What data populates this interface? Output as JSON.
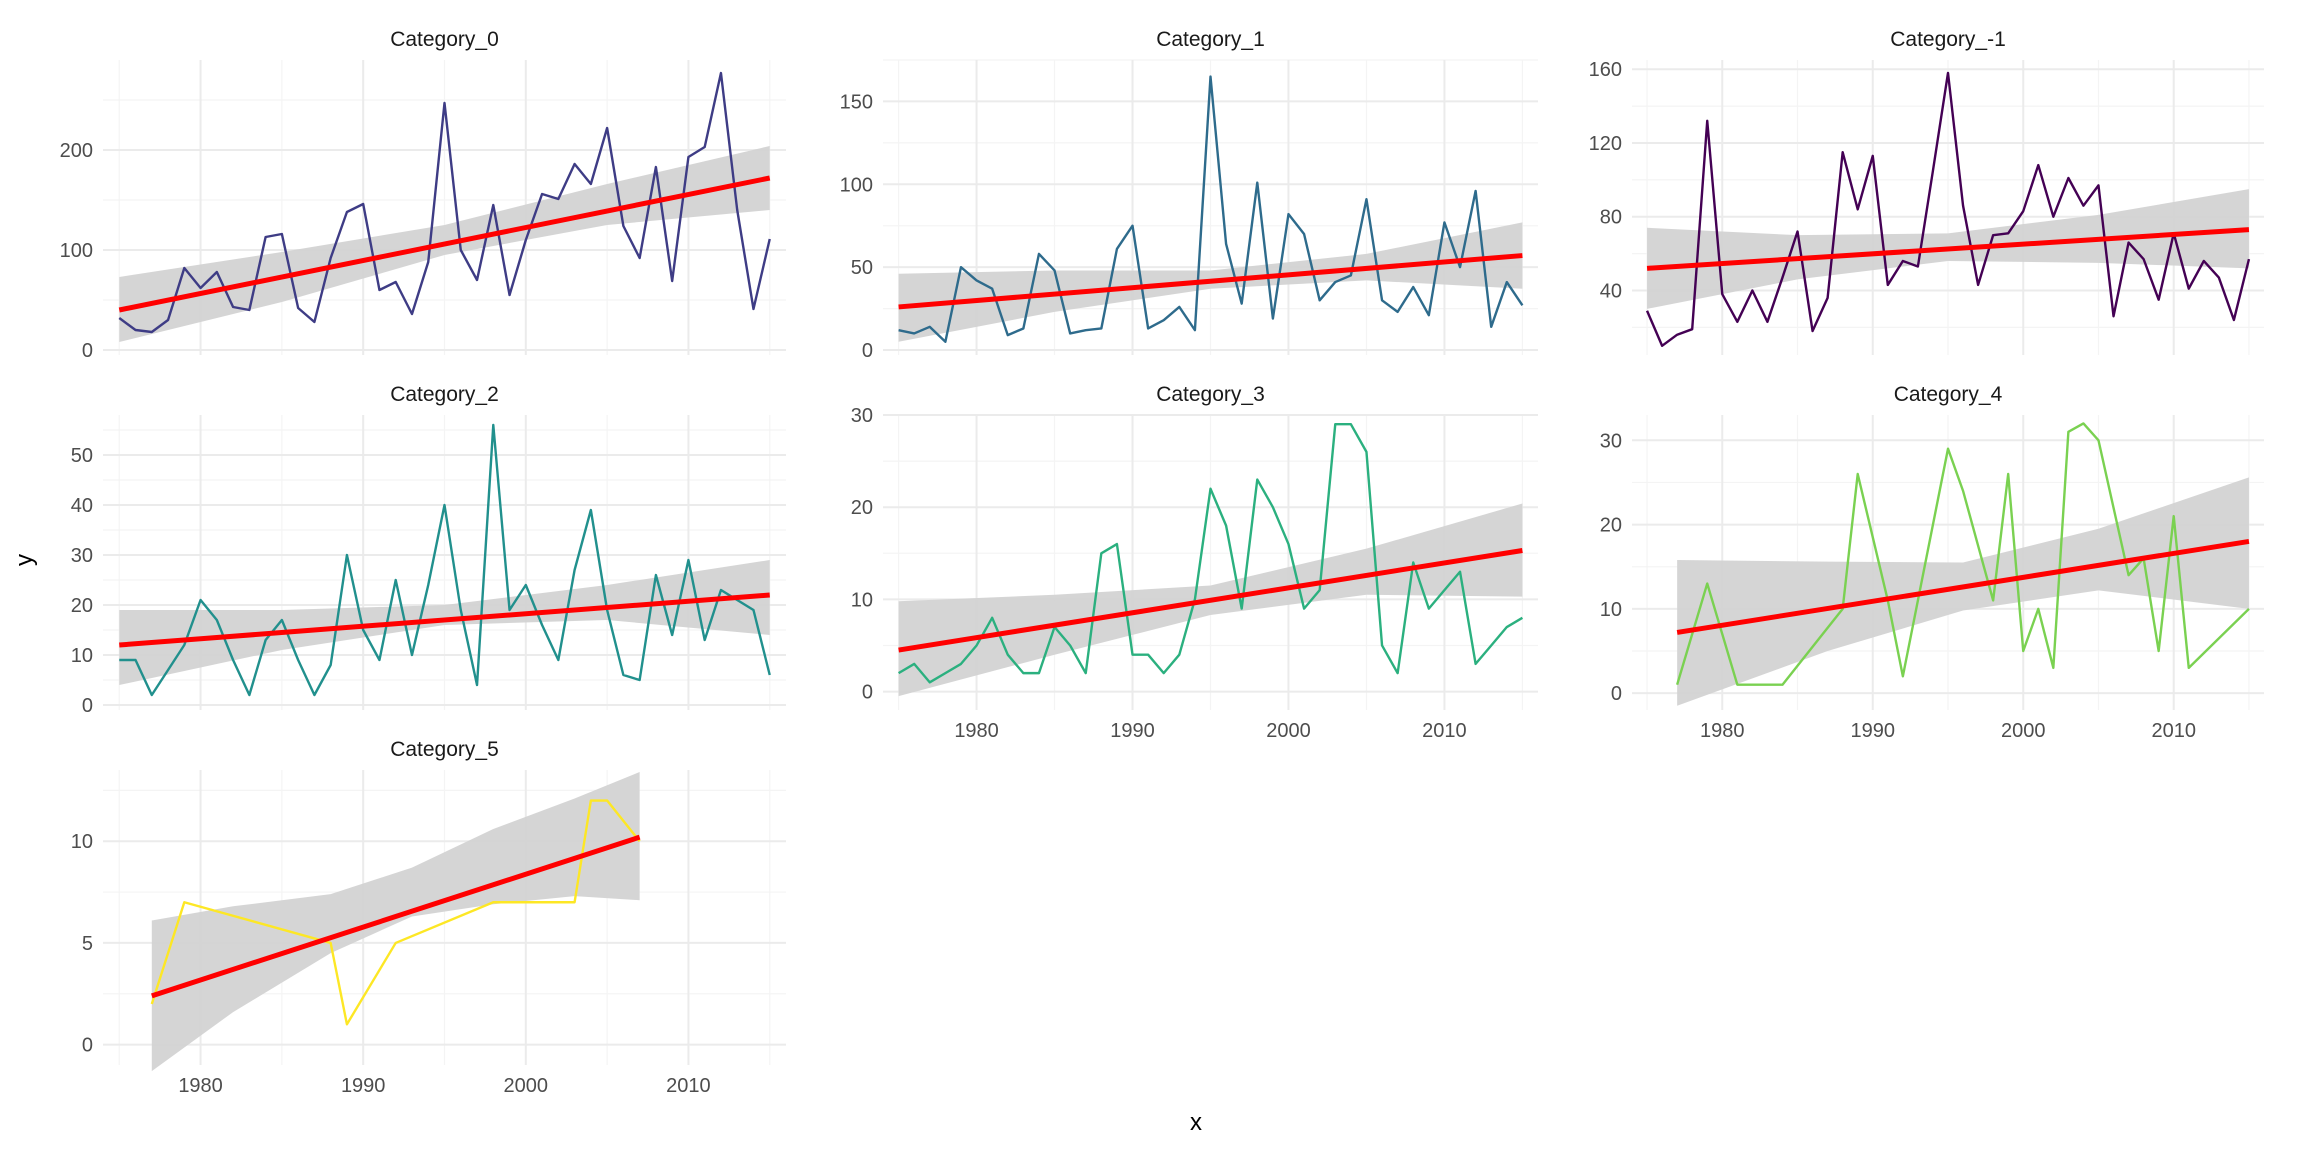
{
  "chart_data": {
    "type": "line",
    "xlabel": "x",
    "ylabel": "y",
    "grid": true,
    "legend": "none",
    "trend_color": "#ff0000",
    "band_color": "#d3d3d3",
    "grid_color": "#ebebeb",
    "panels": [
      {
        "title": "Category_0",
        "color": "#3e3c85",
        "xlim": [
          1974,
          2016
        ],
        "ylim": [
          -5,
          290
        ],
        "yticks": [
          0,
          100,
          200
        ],
        "x": [
          1975,
          1976,
          1977,
          1978,
          1979,
          1980,
          1981,
          1982,
          1983,
          1984,
          1985,
          1986,
          1987,
          1988,
          1989,
          1990,
          1991,
          1992,
          1993,
          1994,
          1995,
          1996,
          1997,
          1998,
          1999,
          2000,
          2001,
          2002,
          2003,
          2004,
          2005,
          2006,
          2007,
          2008,
          2009,
          2010,
          2011,
          2012,
          2013,
          2014,
          2015
        ],
        "y": [
          32,
          20,
          18,
          30,
          82,
          62,
          78,
          43,
          40,
          113,
          116,
          42,
          28,
          92,
          138,
          146,
          60,
          68,
          36,
          88,
          247,
          100,
          70,
          145,
          55,
          110,
          156,
          151,
          186,
          166,
          222,
          124,
          92,
          183,
          69,
          193,
          203,
          277,
          140,
          41,
          111
        ],
        "trend": [
          [
            1975,
            40
          ],
          [
            2015,
            172
          ]
        ],
        "band": [
          [
            1975,
            8,
            73
          ],
          [
            1985,
            48,
            98
          ],
          [
            1995,
            95,
            125
          ],
          [
            2005,
            125,
            166
          ],
          [
            2015,
            140,
            204
          ]
        ]
      },
      {
        "title": "Category_1",
        "color": "#2e6b8c",
        "xlim": [
          1974,
          2016
        ],
        "ylim": [
          -3,
          175
        ],
        "yticks": [
          0,
          50,
          100,
          150
        ],
        "x": [
          1975,
          1976,
          1977,
          1978,
          1979,
          1980,
          1981,
          1982,
          1983,
          1984,
          1985,
          1986,
          1987,
          1988,
          1989,
          1990,
          1991,
          1992,
          1993,
          1994,
          1995,
          1996,
          1997,
          1998,
          1999,
          2000,
          2001,
          2002,
          2003,
          2004,
          2005,
          2006,
          2007,
          2008,
          2009,
          2010,
          2011,
          2012,
          2013,
          2014,
          2015
        ],
        "y": [
          12,
          10,
          14,
          5,
          50,
          42,
          37,
          9,
          13,
          58,
          48,
          10,
          12,
          13,
          61,
          75,
          13,
          18,
          26,
          12,
          165,
          64,
          28,
          101,
          19,
          82,
          70,
          30,
          41,
          45,
          91,
          30,
          23,
          38,
          21,
          77,
          50,
          96,
          14,
          41,
          27
        ],
        "trend": [
          [
            1975,
            26
          ],
          [
            2015,
            57
          ]
        ],
        "band": [
          [
            1975,
            5,
            46
          ],
          [
            1985,
            23,
            48
          ],
          [
            1995,
            37,
            48
          ],
          [
            2005,
            42,
            58
          ],
          [
            2015,
            37,
            77
          ]
        ]
      },
      {
        "title": "Category_-1",
        "color": "#440154",
        "xlim": [
          1974,
          2016
        ],
        "ylim": [
          5,
          165
        ],
        "yticks": [
          40,
          80,
          120,
          160
        ],
        "x": [
          1975,
          1976,
          1977,
          1978,
          1979,
          1980,
          1981,
          1982,
          1983,
          1984,
          1985,
          1986,
          1987,
          1988,
          1989,
          1990,
          1991,
          1992,
          1993,
          1994,
          1995,
          1996,
          1997,
          1998,
          1999,
          2000,
          2001,
          2002,
          2003,
          2004,
          2005,
          2006,
          2007,
          2008,
          2009,
          2010,
          2011,
          2012,
          2013,
          2014,
          2015
        ],
        "y": [
          29,
          10,
          16,
          19,
          132,
          38,
          23,
          40,
          23,
          47,
          72,
          18,
          36,
          115,
          84,
          113,
          43,
          56,
          53,
          105,
          158,
          86,
          43,
          70,
          71,
          83,
          108,
          80,
          101,
          86,
          97,
          26,
          66,
          57,
          35,
          71,
          41,
          56,
          47,
          24,
          57
        ],
        "trend": [
          [
            1975,
            52
          ],
          [
            2015,
            73
          ]
        ],
        "band": [
          [
            1975,
            30,
            74
          ],
          [
            1985,
            46,
            70
          ],
          [
            1995,
            56,
            71
          ],
          [
            2005,
            55,
            81
          ],
          [
            2015,
            52,
            95
          ]
        ]
      },
      {
        "title": "Category_2",
        "color": "#21908d",
        "xlim": [
          1974,
          2016
        ],
        "ylim": [
          -1,
          58
        ],
        "yticks": [
          0,
          10,
          20,
          30,
          40,
          50
        ],
        "x": [
          1975,
          1976,
          1977,
          1978,
          1979,
          1980,
          1981,
          1982,
          1983,
          1984,
          1985,
          1986,
          1987,
          1988,
          1989,
          1990,
          1991,
          1992,
          1993,
          1994,
          1995,
          1996,
          1997,
          1998,
          1999,
          2000,
          2001,
          2002,
          2003,
          2004,
          2005,
          2006,
          2007,
          2008,
          2009,
          2010,
          2011,
          2012,
          2013,
          2014,
          2015
        ],
        "y": [
          9,
          9,
          2,
          7,
          12,
          21,
          17,
          9,
          2,
          13,
          17,
          9,
          2,
          8,
          30,
          15,
          9,
          25,
          10,
          24,
          40,
          19,
          4,
          56,
          19,
          24,
          16,
          9,
          27,
          39,
          19,
          6,
          5,
          26,
          14,
          29,
          13,
          23,
          21,
          19,
          6
        ],
        "trend": [
          [
            1975,
            12
          ],
          [
            2015,
            22
          ]
        ],
        "band": [
          [
            1975,
            4,
            19
          ],
          [
            1985,
            11,
            19
          ],
          [
            1995,
            16,
            20
          ],
          [
            2005,
            17,
            24
          ],
          [
            2015,
            14,
            29
          ]
        ]
      },
      {
        "title": "Category_3",
        "color": "#2bb07f",
        "xlim": [
          1974,
          2016
        ],
        "ylim": [
          -2,
          30
        ],
        "yticks": [
          0,
          10,
          20,
          30
        ],
        "x": [
          1975,
          1976,
          1977,
          1978,
          1979,
          1980,
          1981,
          1982,
          1983,
          1984,
          1985,
          1986,
          1987,
          1988,
          1989,
          1990,
          1991,
          1992,
          1993,
          1994,
          1995,
          1996,
          1997,
          1998,
          1999,
          2000,
          2001,
          2002,
          2003,
          2004,
          2005,
          2006,
          2007,
          2008,
          2009,
          2010,
          2011,
          2012,
          2013,
          2014,
          2015
        ],
        "y": [
          2,
          3,
          1,
          2,
          3,
          5,
          8,
          4,
          2,
          2,
          7,
          5,
          2,
          15,
          16,
          4,
          4,
          2,
          4,
          10,
          22,
          18,
          9,
          23,
          20,
          16,
          9,
          11,
          29,
          29,
          26,
          5,
          2,
          14,
          9,
          11,
          13,
          3,
          5,
          7,
          8
        ],
        "trend": [
          [
            1975,
            4.5
          ],
          [
            2015,
            15.3
          ]
        ],
        "band": [
          [
            1975,
            -0.5,
            9.8
          ],
          [
            1985,
            4,
            10.5
          ],
          [
            1995,
            8.3,
            11.5
          ],
          [
            2005,
            10.5,
            15.5
          ],
          [
            2015,
            10.3,
            20.4
          ]
        ]
      },
      {
        "title": "Category_4",
        "color": "#7ad151",
        "xlim": [
          1974,
          2016
        ],
        "ylim": [
          -2,
          33
        ],
        "yticks": [
          0,
          10,
          20,
          30
        ],
        "x": [
          1977,
          1979,
          1981,
          1984,
          1988,
          1989,
          1991,
          1992,
          1995,
          1996,
          1998,
          1999,
          2000,
          2001,
          2002,
          2003,
          2004,
          2005,
          2007,
          2008,
          2009,
          2010,
          2011,
          2015
        ],
        "y": [
          1,
          13,
          1,
          1,
          10,
          26,
          11,
          2,
          29,
          24,
          11,
          26,
          5,
          10,
          3,
          31,
          32,
          30,
          14,
          16,
          5,
          21,
          3,
          10
        ],
        "trend": [
          [
            1977,
            7.2
          ],
          [
            2015,
            18
          ]
        ],
        "band": [
          [
            1977,
            -1.5,
            15.8
          ],
          [
            1987,
            5,
            15.6
          ],
          [
            1996,
            9.8,
            15.5
          ],
          [
            2005,
            12.2,
            19.5
          ],
          [
            2015,
            10,
            25.6
          ]
        ]
      },
      {
        "title": "Category_5",
        "color": "#fde725",
        "xlim": [
          1974,
          2016
        ],
        "ylim": [
          -1,
          13.5
        ],
        "yticks": [
          0,
          5,
          10
        ],
        "x": [
          1977,
          1979,
          1988,
          1989,
          1992,
          1998,
          2003,
          2004,
          2005,
          2007
        ],
        "y": [
          2,
          7,
          5,
          1,
          5,
          7,
          7,
          12,
          12,
          10
        ],
        "trend": [
          [
            1977,
            2.4
          ],
          [
            2007,
            10.2
          ]
        ],
        "band": [
          [
            1977,
            -1.3,
            6.1
          ],
          [
            1982,
            1.6,
            6.8
          ],
          [
            1988,
            4.5,
            7.4
          ],
          [
            1993,
            6.3,
            8.7
          ],
          [
            1998,
            6.9,
            10.6
          ],
          [
            2003,
            7.3,
            12.1
          ],
          [
            2007,
            7.1,
            13.4
          ]
        ]
      }
    ],
    "xticks": [
      1980,
      1990,
      2000,
      2010
    ]
  }
}
